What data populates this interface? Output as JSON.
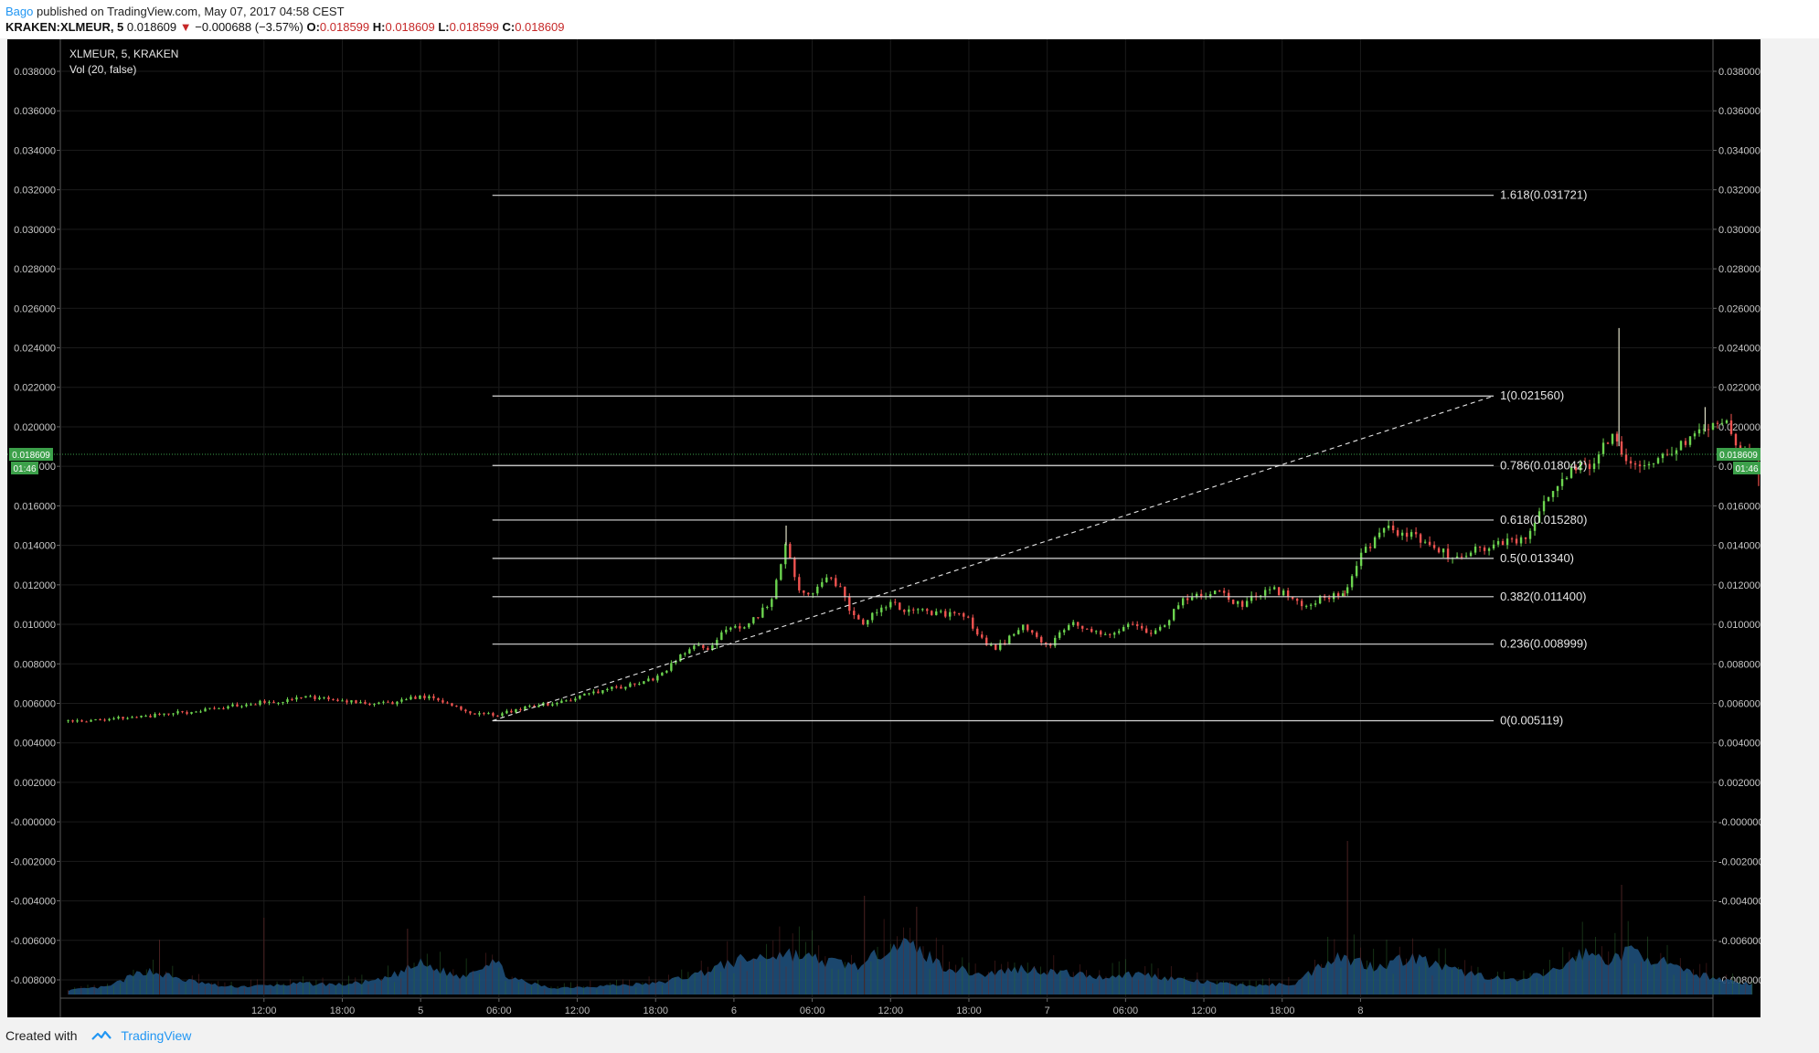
{
  "header": {
    "publisher": "Bago",
    "published_text": "published on TradingView.com, May 07, 2017 04:58 CEST",
    "symbol": "KRAKEN:XLMEUR, 5",
    "last": "0.018609",
    "change": "−0.000688 (−3.57%)",
    "o_label": "O:",
    "o_value": "0.018599",
    "h_label": "H:",
    "h_value": "0.018609",
    "l_label": "L:",
    "l_value": "0.018599",
    "c_label": "C:",
    "c_value": "0.018609"
  },
  "legend": {
    "title": "XLMEUR, 5, KRAKEN",
    "volume": "Vol (20, false)"
  },
  "footer": {
    "created_with": "Created with",
    "brand": "TradingView"
  },
  "colors": {
    "background": "#000000",
    "up": "#6cd44f",
    "down": "#ef5350",
    "volume": "#1e4f7a",
    "fib_line": "#d8d8d8",
    "price_tag": "#3ca04a"
  },
  "chart_data": {
    "type": "candlestick",
    "title": "XLMEUR, 5, KRAKEN",
    "xlabel": "",
    "ylabel": "",
    "ylim": [
      -0.0091,
      0.0398
    ],
    "grid": true,
    "x_ticks": [
      "12:00",
      "18:00",
      "5",
      "06:00",
      "12:00",
      "18:00",
      "6",
      "06:00",
      "12:00",
      "18:00",
      "7",
      "06:00",
      "12:00",
      "18:00",
      "8"
    ],
    "y_ticks": [
      "0.038000",
      "0.036000",
      "0.034000",
      "0.032000",
      "0.030000",
      "0.028000",
      "0.026000",
      "0.024000",
      "0.022000",
      "0.020000",
      "0.018000",
      "0.016000",
      "0.014000",
      "0.012000",
      "0.010000",
      "0.008000",
      "0.006000",
      "0.004000",
      "0.002000",
      "-0.000000",
      "-0.002000",
      "-0.004000",
      "-0.006000",
      "-0.008000"
    ],
    "y_tick_values": [
      0.038,
      0.036,
      0.034,
      0.032,
      0.03,
      0.028,
      0.026,
      0.024,
      0.022,
      0.02,
      0.018,
      0.016,
      0.014,
      0.012,
      0.01,
      0.008,
      0.006,
      0.004,
      0.002,
      0,
      -0.002,
      -0.004,
      -0.006,
      -0.008
    ],
    "x_range_hours": [
      -3.6,
      123.0
    ],
    "x_tick_hours": [
      12,
      18,
      24,
      30,
      36,
      42,
      48,
      54,
      60,
      66,
      72,
      78,
      84,
      90,
      96
    ],
    "last_price": "0.018609",
    "last_value": 0.018609,
    "countdown": "01:46",
    "price_path": [
      [
        -3.0,
        0.0051
      ],
      [
        0,
        0.00515
      ],
      [
        1,
        0.0053
      ],
      [
        3,
        0.00535
      ],
      [
        5,
        0.0055
      ],
      [
        7,
        0.0056
      ],
      [
        9,
        0.0058
      ],
      [
        11,
        0.006
      ],
      [
        13,
        0.0061
      ],
      [
        15,
        0.0063
      ],
      [
        17,
        0.0062
      ],
      [
        18,
        0.0061
      ],
      [
        20,
        0.006
      ],
      [
        22,
        0.006
      ],
      [
        24,
        0.0064
      ],
      [
        26,
        0.006
      ],
      [
        27,
        0.0058
      ],
      [
        28,
        0.0055
      ],
      [
        29.5,
        0.0054
      ],
      [
        31,
        0.0056
      ],
      [
        33,
        0.0059
      ],
      [
        35,
        0.0061
      ],
      [
        37,
        0.0065
      ],
      [
        39,
        0.0068
      ],
      [
        41,
        0.007
      ],
      [
        42.5,
        0.0075
      ],
      [
        44,
        0.0085
      ],
      [
        45,
        0.009
      ],
      [
        46,
        0.0088
      ],
      [
        47,
        0.0095
      ],
      [
        49,
        0.01
      ],
      [
        50,
        0.0105
      ],
      [
        51,
        0.0115
      ],
      [
        52,
        0.014
      ],
      [
        53,
        0.0118
      ],
      [
        54,
        0.0115
      ],
      [
        55,
        0.0125
      ],
      [
        56,
        0.012
      ],
      [
        57,
        0.0105
      ],
      [
        58,
        0.01
      ],
      [
        59,
        0.0108
      ],
      [
        60,
        0.011
      ],
      [
        61,
        0.0108
      ],
      [
        63,
        0.0106
      ],
      [
        65,
        0.0105
      ],
      [
        66,
        0.0102
      ],
      [
        67,
        0.0092
      ],
      [
        68,
        0.0088
      ],
      [
        69,
        0.0092
      ],
      [
        70,
        0.01
      ],
      [
        71,
        0.0095
      ],
      [
        72,
        0.0088
      ],
      [
        73,
        0.0095
      ],
      [
        74,
        0.01
      ],
      [
        75,
        0.0098
      ],
      [
        76,
        0.0096
      ],
      [
        77,
        0.0095
      ],
      [
        78,
        0.01
      ],
      [
        79,
        0.0098
      ],
      [
        80,
        0.0095
      ],
      [
        81,
        0.01
      ],
      [
        82,
        0.011
      ],
      [
        83,
        0.0115
      ],
      [
        84,
        0.0115
      ],
      [
        85,
        0.0118
      ],
      [
        86,
        0.0112
      ],
      [
        87,
        0.011
      ],
      [
        88,
        0.0115
      ],
      [
        89,
        0.0118
      ],
      [
        90,
        0.0116
      ],
      [
        91,
        0.0112
      ],
      [
        92,
        0.011
      ],
      [
        93,
        0.0113
      ],
      [
        94,
        0.0114
      ],
      [
        95,
        0.0118
      ],
      [
        96,
        0.0135
      ],
      [
        97,
        0.0142
      ],
      [
        98,
        0.0148
      ],
      [
        99,
        0.0146
      ],
      [
        100,
        0.0145
      ],
      [
        101,
        0.0142
      ],
      [
        102,
        0.0138
      ],
      [
        103,
        0.0134
      ],
      [
        104,
        0.0136
      ],
      [
        105,
        0.0138
      ],
      [
        106,
        0.014
      ],
      [
        107,
        0.0142
      ],
      [
        108,
        0.0142
      ],
      [
        109,
        0.0145
      ],
      [
        110,
        0.016
      ],
      [
        111,
        0.017
      ],
      [
        112,
        0.0178
      ],
      [
        113,
        0.018
      ],
      [
        114,
        0.0182
      ],
      [
        115,
        0.0195
      ],
      [
        115.5,
        0.0198
      ],
      [
        116,
        0.0185
      ],
      [
        117,
        0.0178
      ],
      [
        118,
        0.018
      ],
      [
        119,
        0.0185
      ],
      [
        120,
        0.0188
      ],
      [
        121,
        0.0192
      ],
      [
        122,
        0.0196
      ],
      [
        123,
        0.02
      ],
      [
        124,
        0.0202
      ],
      [
        125,
        0.019
      ],
      [
        126,
        0.0186
      ]
    ],
    "price_noise": 0.00018,
    "spikes": [
      {
        "h": 52.0,
        "high": 0.015
      },
      {
        "h": 94.8,
        "low": 0.0114
      },
      {
        "h": 115.8,
        "high": 0.025
      },
      {
        "h": 122.4,
        "high": 0.021
      },
      {
        "h": 126.5,
        "low": 0.017
      }
    ],
    "volume_path": [
      [
        -3,
        0.4
      ],
      [
        0,
        0.7
      ],
      [
        3,
        2.2
      ],
      [
        6,
        1.3
      ],
      [
        9,
        0.7
      ],
      [
        12,
        0.8
      ],
      [
        15,
        1.0
      ],
      [
        18,
        0.9
      ],
      [
        21,
        1.3
      ],
      [
        24,
        2.8
      ],
      [
        27,
        1.6
      ],
      [
        29.5,
        3.2
      ],
      [
        31,
        1.4
      ],
      [
        34,
        0.6
      ],
      [
        38,
        0.8
      ],
      [
        42,
        1.0
      ],
      [
        45,
        1.8
      ],
      [
        48,
        3.0
      ],
      [
        52,
        3.8
      ],
      [
        55,
        3.0
      ],
      [
        58,
        2.6
      ],
      [
        60,
        4.8
      ],
      [
        62,
        4.2
      ],
      [
        64,
        2.6
      ],
      [
        67,
        1.8
      ],
      [
        70,
        2.4
      ],
      [
        73,
        2.0
      ],
      [
        76,
        1.6
      ],
      [
        79,
        1.9
      ],
      [
        82,
        1.4
      ],
      [
        85,
        1.0
      ],
      [
        88,
        0.8
      ],
      [
        91,
        1.0
      ],
      [
        94,
        3.6
      ],
      [
        97,
        2.6
      ],
      [
        100,
        3.4
      ],
      [
        103,
        2.2
      ],
      [
        106,
        1.6
      ],
      [
        108,
        1.2
      ],
      [
        111,
        2.2
      ],
      [
        113,
        3.8
      ],
      [
        115,
        3.2
      ],
      [
        117,
        4.0
      ],
      [
        119,
        3.0
      ],
      [
        121,
        2.0
      ],
      [
        123,
        1.6
      ],
      [
        126,
        0.9
      ]
    ],
    "volume_spikes": [
      {
        "h": 4,
        "v": 5
      },
      {
        "h": 12,
        "v": 7
      },
      {
        "h": 23,
        "v": 6
      },
      {
        "h": 58,
        "v": 9
      },
      {
        "h": 62,
        "v": 8
      },
      {
        "h": 95,
        "v": 14
      },
      {
        "h": 116,
        "v": 10
      }
    ],
    "trendline": {
      "from": [
        29.5,
        0.005119
      ],
      "to": [
        106.2,
        0.02156
      ],
      "style": "dashed"
    },
    "fib_levels": [
      {
        "ratio": "1.618",
        "value": 0.031721,
        "label": "1.618(0.031721)"
      },
      {
        "ratio": "1",
        "value": 0.02156,
        "label": "1(0.021560)"
      },
      {
        "ratio": "0.786",
        "value": 0.018042,
        "label": "0.786(0.018042)"
      },
      {
        "ratio": "0.618",
        "value": 0.01528,
        "label": "0.618(0.015280)"
      },
      {
        "ratio": "0.5",
        "value": 0.01334,
        "label": "0.5(0.013340)"
      },
      {
        "ratio": "0.382",
        "value": 0.0114,
        "label": "0.382(0.011400)"
      },
      {
        "ratio": "0.236",
        "value": 0.008999,
        "label": "0.236(0.008999)"
      },
      {
        "ratio": "0",
        "value": 0.005119,
        "label": "0(0.005119)"
      }
    ],
    "fib_range_hours": [
      29.5,
      106.2
    ]
  }
}
